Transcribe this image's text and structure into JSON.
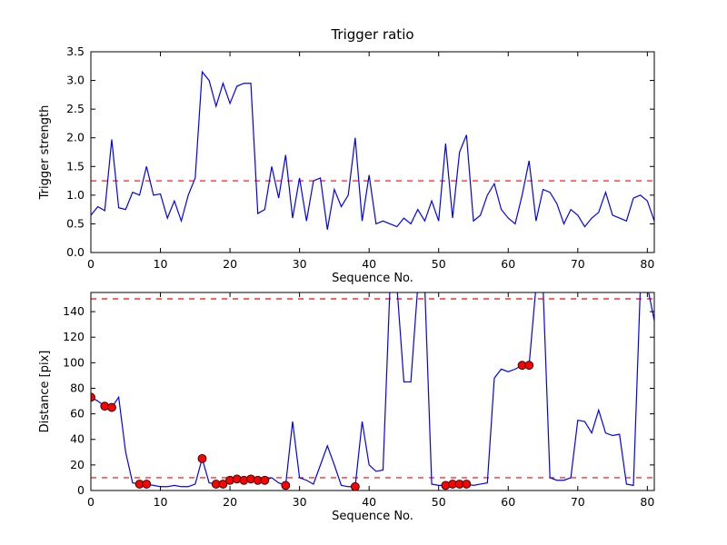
{
  "figure": {
    "background": "#ffffff",
    "frame_color": "#000000"
  },
  "chart_data": [
    {
      "type": "line",
      "title": "Trigger ratio",
      "xlabel": "Sequence No.",
      "ylabel": "Trigger strength",
      "xlim": [
        0,
        81
      ],
      "ylim": [
        0,
        3.5
      ],
      "xticks": [
        0,
        10,
        20,
        30,
        40,
        50,
        60,
        70,
        80
      ],
      "yticks": [
        0,
        0.5,
        1.0,
        1.5,
        2.0,
        2.5,
        3.0,
        3.5
      ],
      "ytick_labels": [
        "0.0",
        "0.5",
        "1.0",
        "1.5",
        "2.0",
        "2.5",
        "3.0",
        "3.5"
      ],
      "grid": false,
      "legend": "none",
      "line_color": "#0000ff",
      "threshold_color": "#ff0000",
      "thresholds": [
        1.25
      ],
      "y": [
        0.65,
        0.8,
        0.73,
        1.97,
        0.78,
        0.75,
        1.05,
        1.0,
        1.5,
        1.0,
        1.02,
        0.6,
        0.9,
        0.55,
        1.0,
        1.3,
        3.15,
        3.0,
        2.55,
        2.95,
        2.6,
        2.9,
        2.95,
        2.95,
        0.68,
        0.75,
        1.5,
        0.95,
        1.7,
        0.6,
        1.3,
        0.55,
        1.25,
        1.3,
        0.4,
        1.1,
        0.8,
        1.0,
        2.0,
        0.55,
        1.35,
        0.5,
        0.55,
        0.5,
        0.45,
        0.6,
        0.5,
        0.75,
        0.55,
        0.9,
        0.55,
        1.9,
        0.6,
        1.75,
        2.05,
        0.55,
        0.65,
        1.0,
        1.2,
        0.75,
        0.6,
        0.5,
        1.0,
        1.6,
        0.55,
        1.1,
        1.05,
        0.85,
        0.5,
        0.75,
        0.65,
        0.45,
        0.6,
        0.7,
        1.05,
        0.65,
        0.6,
        0.55,
        0.95,
        1.0,
        0.9,
        0.55
      ]
    },
    {
      "type": "line+scatter",
      "title": "",
      "xlabel": "Sequence No.",
      "ylabel": "Distance [pix]",
      "xlim": [
        0,
        81
      ],
      "ylim": [
        0,
        155
      ],
      "xticks": [
        0,
        10,
        20,
        30,
        40,
        50,
        60,
        70,
        80
      ],
      "yticks": [
        0,
        20,
        40,
        60,
        80,
        100,
        120,
        140
      ],
      "ytick_labels": [
        "0",
        "20",
        "40",
        "60",
        "80",
        "100",
        "120",
        "140"
      ],
      "grid": false,
      "legend": "none",
      "line_color": "#0000ff",
      "threshold_color": "#ff0000",
      "scatter_color": "#ff0000",
      "thresholds": [
        10,
        150
      ],
      "y": [
        73,
        70,
        66,
        65,
        73,
        30,
        6,
        5,
        5,
        4,
        3,
        3,
        4,
        3,
        3,
        5,
        25,
        6,
        5,
        5,
        8,
        9,
        8,
        9,
        8,
        8,
        10,
        6,
        4,
        54,
        10,
        8,
        5,
        20,
        35,
        20,
        4,
        3,
        3,
        54,
        20,
        15,
        16,
        160,
        160,
        85,
        85,
        160,
        160,
        5,
        4,
        4,
        5,
        5,
        5,
        4,
        5,
        6,
        88,
        95,
        93,
        95,
        98,
        98,
        160,
        160,
        10,
        8,
        8,
        10,
        55,
        54,
        45,
        63,
        45,
        43,
        44,
        5,
        4,
        160,
        160,
        133
      ],
      "scatter": [
        [
          0,
          73
        ],
        [
          2,
          66
        ],
        [
          3,
          65
        ],
        [
          7,
          5
        ],
        [
          8,
          5
        ],
        [
          16,
          25
        ],
        [
          18,
          5
        ],
        [
          19,
          5
        ],
        [
          20,
          8
        ],
        [
          21,
          9
        ],
        [
          22,
          8
        ],
        [
          23,
          9
        ],
        [
          24,
          8
        ],
        [
          25,
          8
        ],
        [
          28,
          4
        ],
        [
          38,
          3
        ],
        [
          51,
          4
        ],
        [
          52,
          5
        ],
        [
          53,
          5
        ],
        [
          54,
          5
        ],
        [
          62,
          98
        ],
        [
          63,
          98
        ]
      ]
    }
  ]
}
